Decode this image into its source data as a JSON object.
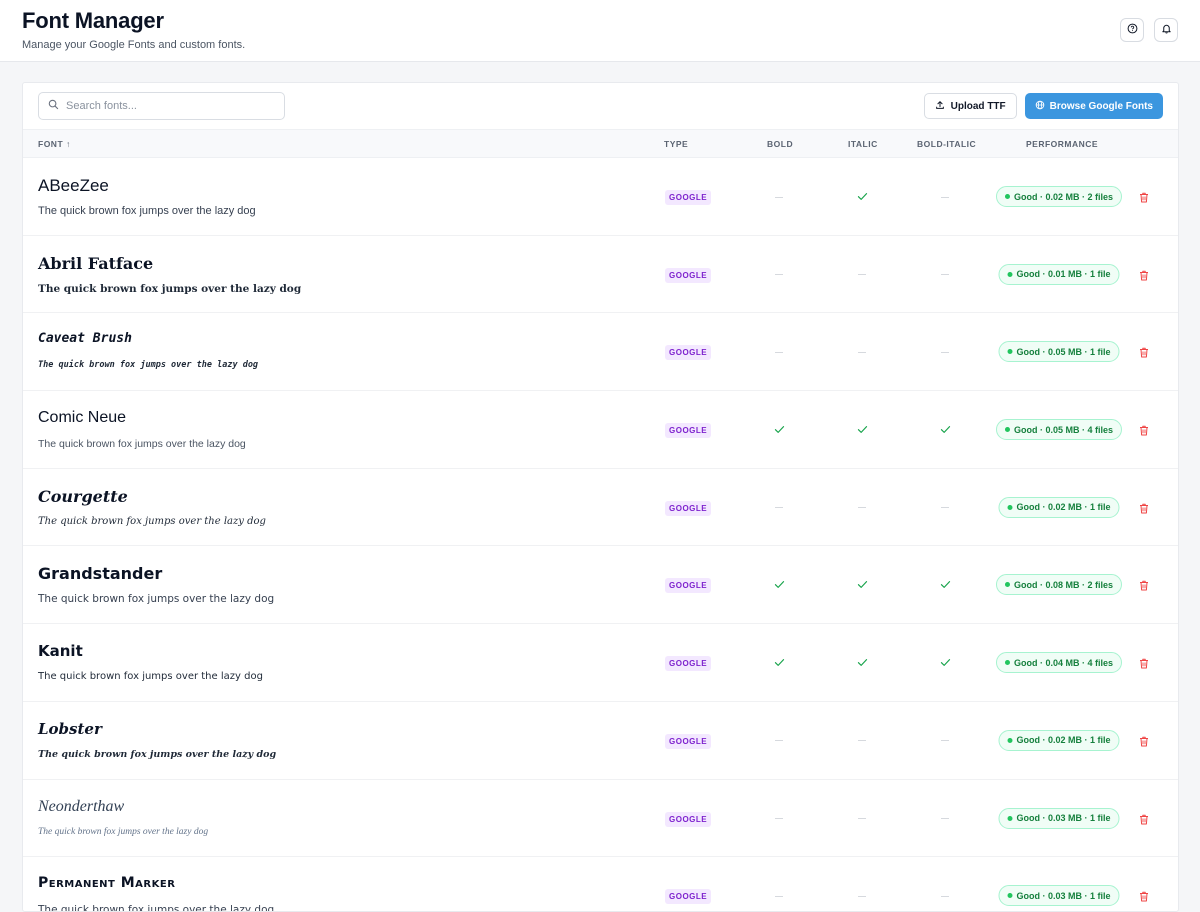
{
  "header": {
    "title": "Font Manager",
    "subtitle": "Manage your Google Fonts and custom fonts."
  },
  "toolbar": {
    "search_placeholder": "Search fonts...",
    "upload_label": "Upload TTF",
    "browse_label": "Browse Google Fonts"
  },
  "table": {
    "columns": {
      "font": "FONT ↑",
      "type": "TYPE",
      "bold": "BOLD",
      "italic": "ITALIC",
      "bold_italic": "BOLD-ITALIC",
      "performance": "PERFORMANCE"
    },
    "rows": [
      {
        "name": "ABeeZee",
        "sample": "The quick brown fox jumps over the lazy dog",
        "type": "GOOGLE",
        "bold": false,
        "italic": true,
        "bold_italic": false,
        "performance": "Good · 0.02 MB · 2 files"
      },
      {
        "name": "Abril Fatface",
        "sample": "The quick brown fox jumps over the lazy dog",
        "type": "GOOGLE",
        "bold": false,
        "italic": false,
        "bold_italic": false,
        "performance": "Good · 0.01 MB · 1 file"
      },
      {
        "name": "Caveat Brush",
        "sample": "The quick brown fox jumps over the lazy dog",
        "type": "GOOGLE",
        "bold": false,
        "italic": false,
        "bold_italic": false,
        "performance": "Good · 0.05 MB · 1 file"
      },
      {
        "name": "Comic Neue",
        "sample": "The quick brown fox jumps over the lazy dog",
        "type": "GOOGLE",
        "bold": true,
        "italic": true,
        "bold_italic": true,
        "performance": "Good · 0.05 MB · 4 files"
      },
      {
        "name": "Courgette",
        "sample": "The quick brown fox jumps over the lazy dog",
        "type": "GOOGLE",
        "bold": false,
        "italic": false,
        "bold_italic": false,
        "performance": "Good · 0.02 MB · 1 file"
      },
      {
        "name": "Grandstander",
        "sample": "The quick brown fox jumps over the lazy dog",
        "type": "GOOGLE",
        "bold": true,
        "italic": true,
        "bold_italic": true,
        "performance": "Good · 0.08 MB · 2 files"
      },
      {
        "name": "Kanit",
        "sample": "The quick brown fox jumps over the lazy dog",
        "type": "GOOGLE",
        "bold": true,
        "italic": true,
        "bold_italic": true,
        "performance": "Good · 0.04 MB · 4 files"
      },
      {
        "name": "Lobster",
        "sample": "The quick brown fox jumps over the lazy dog",
        "type": "GOOGLE",
        "bold": false,
        "italic": false,
        "bold_italic": false,
        "performance": "Good · 0.02 MB · 1 file"
      },
      {
        "name": "Neonderthaw",
        "sample": "The quick brown fox jumps over the lazy dog",
        "type": "GOOGLE",
        "bold": false,
        "italic": false,
        "bold_italic": false,
        "performance": "Good · 0.03 MB · 1 file"
      },
      {
        "name": "Permanent Marker",
        "sample": "The quick brown fox jumps over the lazy dog",
        "type": "GOOGLE",
        "bold": false,
        "italic": false,
        "bold_italic": false,
        "performance": "Good · 0.03 MB · 1 file"
      }
    ]
  },
  "icons": {
    "help": "help-circle-icon",
    "notifications": "bell-icon",
    "search": "search-icon",
    "upload": "upload-icon",
    "browse": "globe-icon",
    "check": "check-icon",
    "delete": "trash-icon"
  },
  "colors": {
    "primary": "#3b96df",
    "badge_bg": "#f3e8ff",
    "badge_text": "#7e22ce",
    "perf_good": "#15803d",
    "perf_border": "#a7f3d0",
    "delete": "#ef4444",
    "check": "#16a34a"
  }
}
